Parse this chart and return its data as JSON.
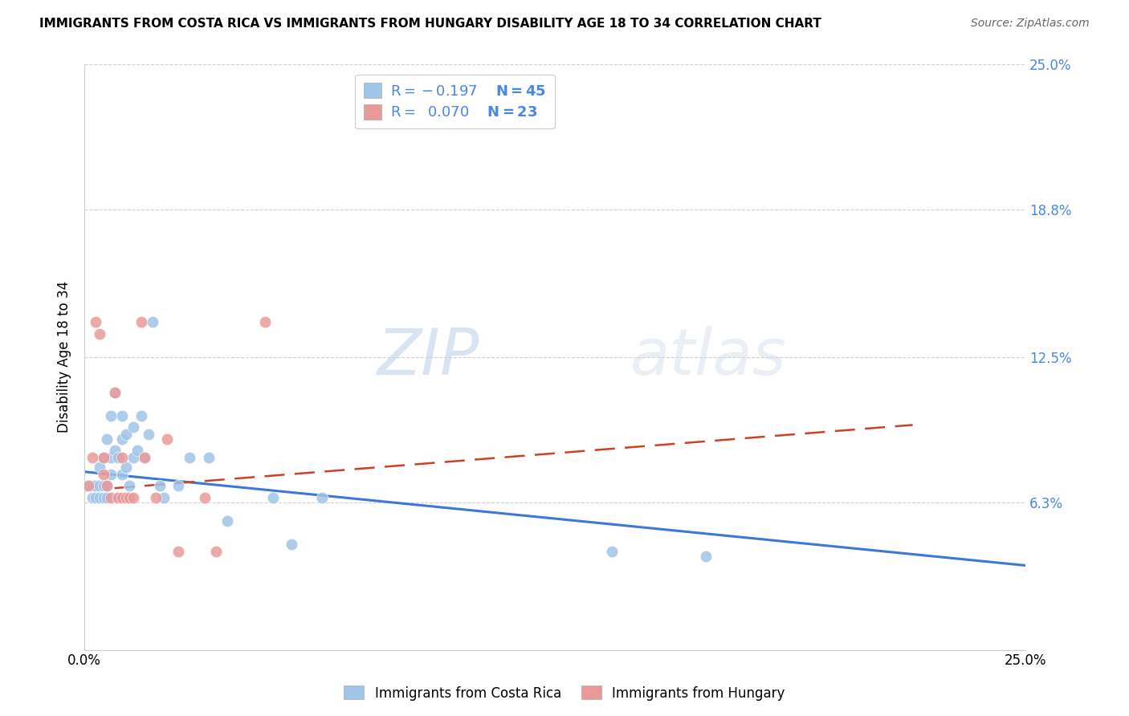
{
  "title": "IMMIGRANTS FROM COSTA RICA VS IMMIGRANTS FROM HUNGARY DISABILITY AGE 18 TO 34 CORRELATION CHART",
  "source": "Source: ZipAtlas.com",
  "ylabel": "Disability Age 18 to 34",
  "xmin": 0.0,
  "xmax": 0.25,
  "ymin": 0.0,
  "ymax": 0.25,
  "ytick_vals": [
    0.0,
    0.063,
    0.125,
    0.188,
    0.25
  ],
  "right_ytick_labels": [
    "",
    "6.3%",
    "12.5%",
    "18.8%",
    "25.0%"
  ],
  "xtick_vals": [
    0.0,
    0.05,
    0.1,
    0.15,
    0.2,
    0.25
  ],
  "xtick_labels": [
    "0.0%",
    "",
    "",
    "",
    "",
    "25.0%"
  ],
  "legend_r1": "R = -0.197",
  "legend_n1": "N = 45",
  "legend_r2": "R = 0.070",
  "legend_n2": "N = 23",
  "color_blue": "#9fc5e8",
  "color_pink": "#ea9999",
  "color_blue_line": "#3c78d8",
  "color_pink_line": "#cc4125",
  "color_label": "#4a86e8",
  "color_grid": "#cccccc",
  "watermark_color": "#d0e0f0",
  "legend_label_1": "Immigrants from Costa Rica",
  "legend_label_2": "Immigrants from Hungary",
  "costa_rica_x": [
    0.001,
    0.002,
    0.002,
    0.003,
    0.003,
    0.004,
    0.004,
    0.004,
    0.005,
    0.005,
    0.005,
    0.006,
    0.006,
    0.006,
    0.007,
    0.007,
    0.007,
    0.008,
    0.008,
    0.009,
    0.009,
    0.01,
    0.01,
    0.01,
    0.011,
    0.011,
    0.012,
    0.013,
    0.013,
    0.014,
    0.015,
    0.016,
    0.017,
    0.018,
    0.02,
    0.021,
    0.025,
    0.028,
    0.033,
    0.038,
    0.05,
    0.055,
    0.063,
    0.14,
    0.165
  ],
  "costa_rica_y": [
    0.07,
    0.065,
    0.07,
    0.065,
    0.07,
    0.065,
    0.07,
    0.078,
    0.065,
    0.07,
    0.082,
    0.065,
    0.07,
    0.09,
    0.075,
    0.082,
    0.1,
    0.085,
    0.11,
    0.065,
    0.082,
    0.075,
    0.09,
    0.1,
    0.078,
    0.092,
    0.07,
    0.082,
    0.095,
    0.085,
    0.1,
    0.082,
    0.092,
    0.14,
    0.07,
    0.065,
    0.07,
    0.082,
    0.082,
    0.055,
    0.065,
    0.045,
    0.065,
    0.042,
    0.04
  ],
  "hungary_x": [
    0.001,
    0.002,
    0.003,
    0.004,
    0.005,
    0.005,
    0.006,
    0.007,
    0.008,
    0.009,
    0.01,
    0.01,
    0.011,
    0.012,
    0.013,
    0.015,
    0.016,
    0.019,
    0.022,
    0.025,
    0.032,
    0.035,
    0.048
  ],
  "hungary_y": [
    0.07,
    0.082,
    0.14,
    0.135,
    0.082,
    0.075,
    0.07,
    0.065,
    0.11,
    0.065,
    0.065,
    0.082,
    0.065,
    0.065,
    0.065,
    0.14,
    0.082,
    0.065,
    0.09,
    0.042,
    0.065,
    0.042,
    0.14
  ],
  "blue_line_x": [
    0.0,
    0.25
  ],
  "blue_line_y": [
    0.076,
    0.036
  ],
  "pink_line_x": [
    0.0,
    0.22
  ],
  "pink_line_y": [
    0.068,
    0.096
  ]
}
